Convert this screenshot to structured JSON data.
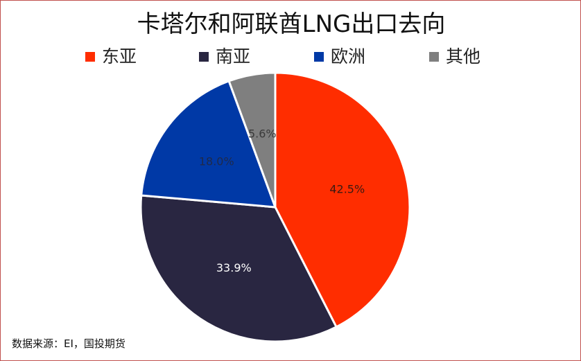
{
  "chart_data": {
    "type": "pie",
    "title": "卡塔尔和阿联酋LNG出口去向",
    "categories": [
      "东亚",
      "南亚",
      "欧洲",
      "其他"
    ],
    "values": [
      42.5,
      33.9,
      18.0,
      5.6
    ],
    "labels": [
      "42.5%",
      "33.9%",
      "18.0%",
      "5.6%"
    ],
    "colors": [
      "#ff2d00",
      "#292641",
      "#0039a6",
      "#7f7f7f"
    ],
    "label_colors": [
      "#3b1a12",
      "#ffffff",
      "#1f2a4a",
      "#3a3a3a"
    ],
    "legend_position": "top",
    "start": "12 o'clock, clockwise"
  },
  "source": "数据来源：EI，国投期货"
}
